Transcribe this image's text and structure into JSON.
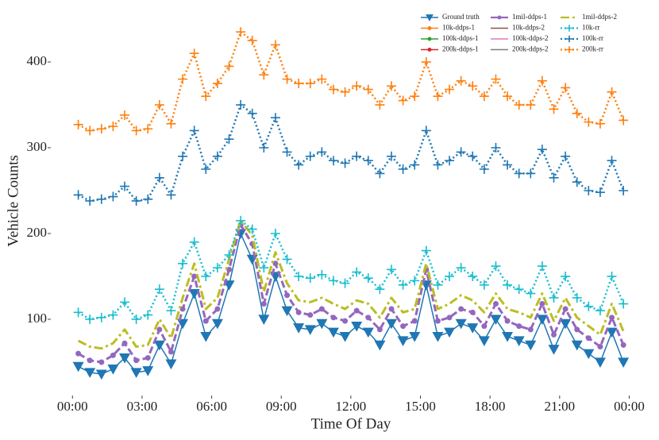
{
  "chart_data": {
    "type": "line",
    "xlabel": "Time Of Day",
    "ylabel": "Vehicle Counts",
    "x": [
      0.25,
      0.75,
      1.25,
      1.75,
      2.25,
      2.75,
      3.25,
      3.75,
      4.25,
      4.75,
      5.25,
      5.75,
      6.25,
      6.75,
      7.25,
      7.75,
      8.25,
      8.75,
      9.25,
      9.75,
      10.25,
      10.75,
      11.25,
      11.75,
      12.25,
      12.75,
      13.25,
      13.75,
      14.25,
      14.75,
      15.25,
      15.75,
      16.25,
      16.75,
      17.25,
      17.75,
      18.25,
      18.75,
      19.25,
      19.75,
      20.25,
      20.75,
      21.25,
      21.75,
      22.25,
      22.75,
      23.25,
      23.75
    ],
    "xlim": [
      -0.9,
      24.6
    ],
    "xticks": [
      {
        "value": 0,
        "label": "00:00"
      },
      {
        "value": 3,
        "label": "03:00"
      },
      {
        "value": 6,
        "label": "06:00"
      },
      {
        "value": 9,
        "label": "09:00"
      },
      {
        "value": 12,
        "label": "12:00"
      },
      {
        "value": 15,
        "label": "15:00"
      },
      {
        "value": 18,
        "label": "18:00"
      },
      {
        "value": 21,
        "label": "21:00"
      },
      {
        "value": 24,
        "label": "00:00"
      }
    ],
    "ylim": [
      12,
      463
    ],
    "yticks": [
      100,
      200,
      300,
      400
    ],
    "legend": "upper right",
    "legend_columns": 3,
    "series": [
      {
        "name": "Ground truth",
        "color": "#1f77b4",
        "linestyle": "solid",
        "marker": "triangle-down",
        "values": [
          45,
          38,
          36,
          42,
          55,
          38,
          40,
          70,
          48,
          95,
          130,
          80,
          95,
          140,
          200,
          170,
          100,
          150,
          110,
          90,
          88,
          95,
          85,
          80,
          92,
          85,
          70,
          95,
          75,
          80,
          140,
          80,
          85,
          95,
          90,
          75,
          100,
          80,
          75,
          70,
          100,
          65,
          95,
          70,
          60,
          50,
          85,
          50
        ]
      },
      {
        "name": "10k-ddps-1",
        "color": "#ff7f0e",
        "linestyle": "solid",
        "marker": "circle",
        "values": [
          null,
          null,
          null,
          null,
          null,
          null,
          null,
          null,
          null,
          null,
          null,
          null,
          null,
          null,
          null,
          null,
          null,
          null,
          null,
          null,
          null,
          null,
          null,
          null,
          null,
          null,
          null,
          null,
          null,
          null,
          null,
          null,
          null,
          null,
          null,
          null,
          null,
          null,
          null,
          null,
          null,
          null,
          null,
          null,
          null,
          null,
          null,
          null
        ]
      },
      {
        "name": "100k-ddps-1",
        "color": "#2ca02c",
        "linestyle": "solid",
        "marker": "circle",
        "values": [
          null,
          null,
          null,
          null,
          null,
          null,
          null,
          null,
          null,
          null,
          null,
          null,
          null,
          null,
          null,
          null,
          null,
          null,
          null,
          null,
          null,
          null,
          null,
          null,
          null,
          null,
          null,
          null,
          null,
          null,
          null,
          null,
          null,
          null,
          null,
          null,
          null,
          null,
          null,
          null,
          null,
          null,
          null,
          null,
          null,
          null,
          null,
          null
        ]
      },
      {
        "name": "200k-ddps-1",
        "color": "#d62728",
        "linestyle": "solid",
        "marker": "circle",
        "values": [
          null,
          null,
          null,
          null,
          null,
          null,
          null,
          null,
          null,
          null,
          null,
          null,
          null,
          null,
          null,
          null,
          null,
          null,
          null,
          null,
          null,
          null,
          null,
          null,
          null,
          null,
          null,
          null,
          null,
          null,
          null,
          null,
          null,
          null,
          null,
          null,
          null,
          null,
          null,
          null,
          null,
          null,
          null,
          null,
          null,
          null,
          null,
          null
        ]
      },
      {
        "name": "1mil-ddps-1",
        "color": "#9467bd",
        "linestyle": "dashed",
        "marker": "circle",
        "values": [
          60,
          52,
          50,
          58,
          72,
          52,
          55,
          88,
          62,
          112,
          150,
          98,
          112,
          158,
          210,
          188,
          118,
          165,
          128,
          108,
          105,
          112,
          102,
          98,
          110,
          102,
          88,
          112,
          92,
          98,
          158,
          98,
          102,
          112,
          108,
          92,
          118,
          98,
          92,
          88,
          118,
          82,
          112,
          88,
          78,
          68,
          102,
          70
        ]
      },
      {
        "name": "10k-ddps-2",
        "color": "#8c564b",
        "linestyle": "solid",
        "marker": "none",
        "values": [
          null,
          null,
          null,
          null,
          null,
          null,
          null,
          null,
          null,
          null,
          null,
          null,
          null,
          null,
          null,
          null,
          null,
          null,
          null,
          null,
          null,
          null,
          null,
          null,
          null,
          null,
          null,
          null,
          null,
          null,
          null,
          null,
          null,
          null,
          null,
          null,
          null,
          null,
          null,
          null,
          null,
          null,
          null,
          null,
          null,
          null,
          null,
          null
        ]
      },
      {
        "name": "100k-ddps-2",
        "color": "#e377c2",
        "linestyle": "solid",
        "marker": "none",
        "values": [
          null,
          null,
          null,
          null,
          null,
          null,
          null,
          null,
          null,
          null,
          null,
          null,
          null,
          null,
          null,
          null,
          null,
          null,
          null,
          null,
          null,
          null,
          null,
          null,
          null,
          null,
          null,
          null,
          null,
          null,
          null,
          null,
          null,
          null,
          null,
          null,
          null,
          null,
          null,
          null,
          null,
          null,
          null,
          null,
          null,
          null,
          null,
          null
        ]
      },
      {
        "name": "200k-ddps-2",
        "color": "#7f7f7f",
        "linestyle": "solid",
        "marker": "none",
        "values": [
          null,
          null,
          null,
          null,
          null,
          null,
          null,
          null,
          null,
          null,
          null,
          null,
          null,
          null,
          null,
          null,
          null,
          null,
          null,
          null,
          null,
          null,
          null,
          null,
          null,
          null,
          null,
          null,
          null,
          null,
          null,
          null,
          null,
          null,
          null,
          null,
          null,
          null,
          null,
          null,
          null,
          null,
          null,
          null,
          null,
          null,
          null,
          null
        ]
      },
      {
        "name": "1mil-ddps-2",
        "color": "#bcbd22",
        "linestyle": "dashdot",
        "marker": "none",
        "values": [
          75,
          68,
          66,
          72,
          88,
          68,
          70,
          100,
          78,
          125,
          165,
          112,
          125,
          170,
          215,
          198,
          132,
          178,
          142,
          122,
          120,
          125,
          118,
          112,
          122,
          118,
          102,
          125,
          108,
          112,
          165,
          112,
          118,
          128,
          122,
          108,
          130,
          112,
          108,
          102,
          130,
          98,
          125,
          102,
          92,
          82,
          118,
          86
        ]
      },
      {
        "name": "10k-rr",
        "color": "#17becf",
        "linestyle": "dotted",
        "marker": "plus",
        "values": [
          108,
          100,
          102,
          105,
          120,
          100,
          105,
          135,
          110,
          165,
          190,
          150,
          160,
          175,
          215,
          205,
          160,
          200,
          170,
          150,
          148,
          152,
          145,
          142,
          155,
          148,
          135,
          158,
          140,
          145,
          180,
          140,
          150,
          160,
          150,
          140,
          162,
          140,
          135,
          130,
          162,
          125,
          150,
          125,
          115,
          110,
          150,
          118
        ]
      },
      {
        "name": "100k-rr",
        "color": "#1f77b4",
        "linestyle": "dotted",
        "marker": "plus",
        "values": [
          245,
          238,
          240,
          243,
          255,
          238,
          240,
          265,
          245,
          290,
          320,
          275,
          290,
          310,
          350,
          340,
          300,
          335,
          295,
          280,
          290,
          295,
          285,
          282,
          290,
          285,
          270,
          290,
          275,
          280,
          320,
          280,
          285,
          295,
          290,
          275,
          300,
          280,
          270,
          270,
          298,
          265,
          290,
          260,
          250,
          248,
          285,
          250
        ]
      },
      {
        "name": "200k-rr",
        "color": "#ff7f0e",
        "linestyle": "dotted",
        "marker": "plus",
        "values": [
          327,
          320,
          322,
          325,
          338,
          320,
          322,
          350,
          328,
          380,
          410,
          360,
          375,
          395,
          435,
          425,
          385,
          420,
          380,
          375,
          375,
          380,
          368,
          365,
          372,
          368,
          350,
          372,
          355,
          360,
          400,
          360,
          368,
          378,
          372,
          360,
          380,
          360,
          350,
          350,
          378,
          345,
          370,
          340,
          330,
          328,
          365,
          332
        ]
      }
    ]
  }
}
